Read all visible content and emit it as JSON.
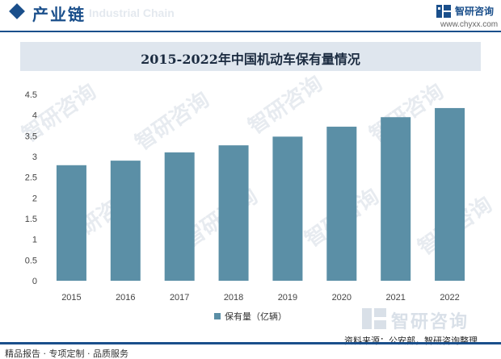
{
  "header": {
    "section_title": "产业链",
    "ghost_text": "Industrial Chain",
    "brand_name": "智研咨询",
    "brand_url": "www.chyxx.com"
  },
  "chart_data": {
    "type": "bar",
    "title": "2015-2022年中国机动车保有量情况",
    "categories": [
      "2015",
      "2016",
      "2017",
      "2018",
      "2019",
      "2020",
      "2021",
      "2022"
    ],
    "series": [
      {
        "name": "保有量（亿辆）",
        "values": [
          2.79,
          2.9,
          3.1,
          3.27,
          3.48,
          3.72,
          3.95,
          4.17
        ],
        "color": "#5b8fa6"
      }
    ],
    "y_ticks": [
      "0",
      "0.5",
      "1",
      "1.5",
      "2",
      "2.5",
      "3",
      "3.5",
      "4",
      "4.5"
    ],
    "ylim": [
      0,
      4.5
    ],
    "grid": false,
    "legend_position": "bottom"
  },
  "watermark": {
    "text": "智研咨询"
  },
  "footer": {
    "left_text": "精品报告 · 专项定制 · 品质服务",
    "source_text": "资料来源：公安部，智研咨询整理"
  },
  "colors": {
    "brand": "#1a4f8b",
    "bar": "#5b8fa6",
    "title_band": "#dfe6ee"
  }
}
